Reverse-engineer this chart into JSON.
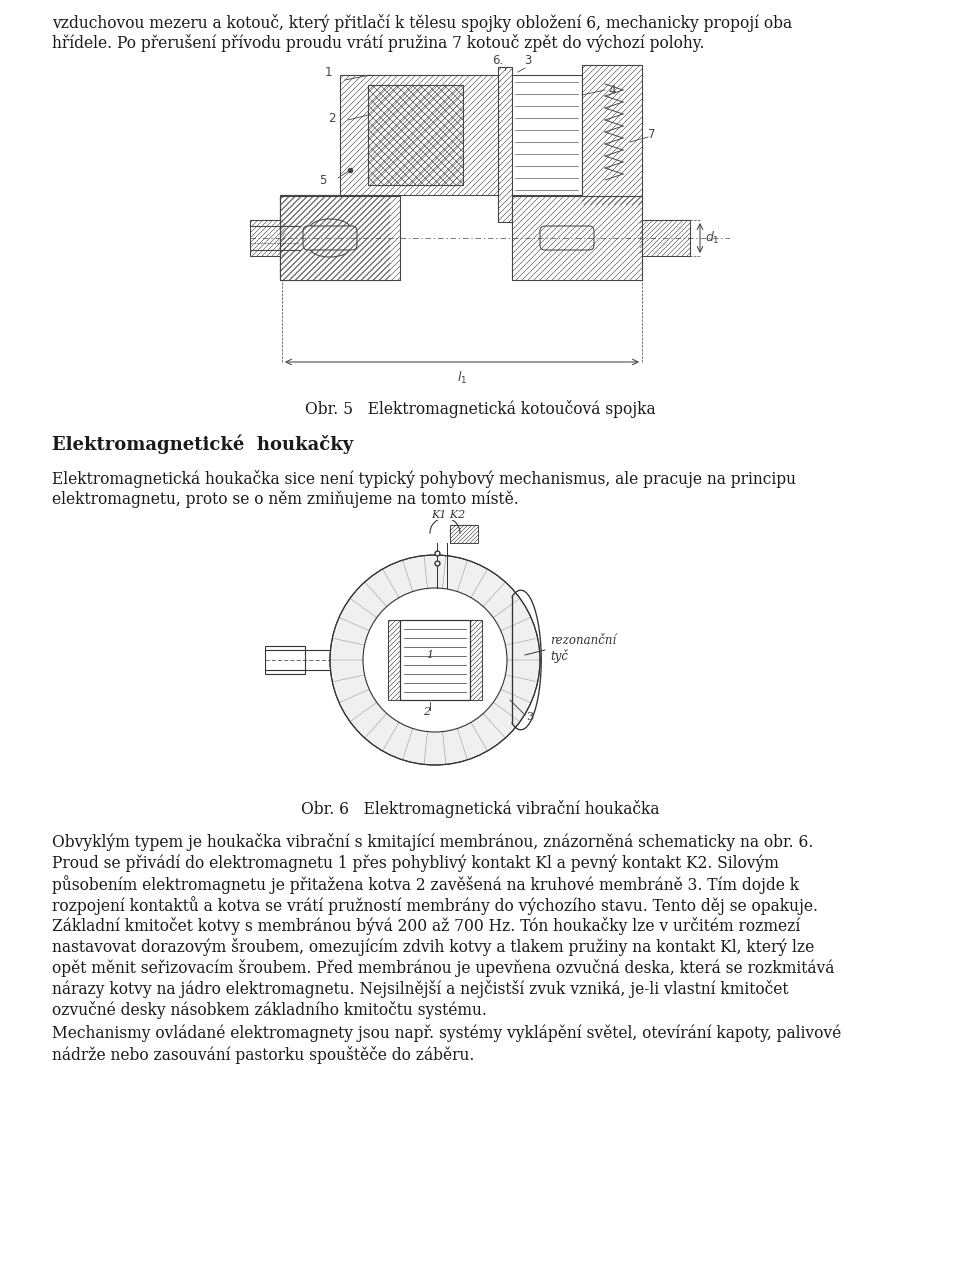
{
  "bg_color": "#ffffff",
  "text_color": "#1a1a1a",
  "fig_width": 9.6,
  "fig_height": 12.63,
  "font_size_body": 11.2,
  "font_size_caption": 11.2,
  "font_size_heading": 13.0,
  "line1": "vzduchovou mezeru a kotouč, který přitlačí k tělesu spojky obložení 6, mechanicky propojí oba",
  "line2": "hřídele. Po přerušení přívodu proudu vrátí pružina 7 kotouč zpět do výchozí polohy.",
  "caption1": "Obr. 5   Elektromagnetická kotoučová spojka",
  "heading": "Elektromagnetické  houkačky",
  "para1_line1": "Elektromagnetická houkačka sice není typický pohybový mechanismus, ale pracuje na principu",
  "para1_line2": "elektromagnetu, proto se o něm zmiňujeme na tomto místě.",
  "caption2": "Obr. 6   Elektromagnetická vibrační houkačka",
  "para2_line1": "Obvyklým typem je houkačka vibrační s kmitající membránou, znázorněná schematicky na obr. 6.",
  "para2_line2": "Proud se přivádí do elektromagnetu 1 přes pohyblivý kontakt Kl a pevný kontakt K2. Silovým",
  "para2_line3": "působením elektromagnetu je přitažena kotva 2 zavěšená na kruhové membráně 3. Tím dojde k",
  "para2_line4": "rozpojení kontaktů a kotva se vrátí pružností membrány do výchozího stavu. Tento děj se opakuje.",
  "para2_line5": "Základní kmitočet kotvy s membránou bývá 200 až 700 Hz. Tón houkačky lze v určitém rozmezí",
  "para2_line6": "nastavovat dorazovým šroubem, omezujícím zdvih kotvy a tlakem pružiny na kontakt Kl, který lze",
  "para2_line7": "opět měnit seřizovacím šroubem. Před membránou je upevňena ozvučná deska, která se rozkmitává",
  "para2_line8": "nárazy kotvy na jádro elektromagnetu. Nejsilnější a nejčistší zvuk vzniká, je-li vlastní kmitočet",
  "para2_line9": "ozvučné desky násobkem základního kmitočtu systému.",
  "para3_line1": "Mechanismy ovládané elektromagnety jsou např. systémy vyklápění světel, otevírání kapoty, palivové",
  "para3_line2": "nádrže nebo zasouvání pastorku spouštěče do záběru."
}
